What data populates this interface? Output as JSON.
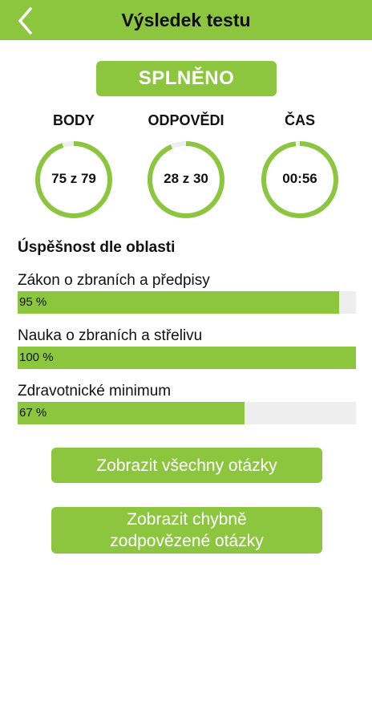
{
  "header": {
    "title": "Výsledek testu",
    "back_icon": "chevron-left-icon"
  },
  "result": {
    "status": "SPLNĚNO"
  },
  "stats": [
    {
      "label": "BODY",
      "value": "75 z 79",
      "progress": 0.949
    },
    {
      "label": "ODPOVĚDI",
      "value": "28 z 30",
      "progress": 0.933
    },
    {
      "label": "ČAS",
      "value": "00:56",
      "progress": 0.98
    }
  ],
  "areas": {
    "title": "Úspěšnost dle oblasti",
    "items": [
      {
        "name": "Zákon o zbraních a předpisy",
        "percent_label": "95 %",
        "percent": 95
      },
      {
        "name": "Nauka o zbraních a střelivu",
        "percent_label": "100 %",
        "percent": 100
      },
      {
        "name": "Zdravotnické minimum",
        "percent_label": "67 %",
        "percent": 67
      }
    ]
  },
  "actions": {
    "show_all": "Zobrazit všechny otázky",
    "show_wrong": "Zobrazit chybně zodpovězené otázky"
  },
  "colors": {
    "accent": "#8cc63f",
    "track": "#eeeeee",
    "text": "#111111"
  }
}
